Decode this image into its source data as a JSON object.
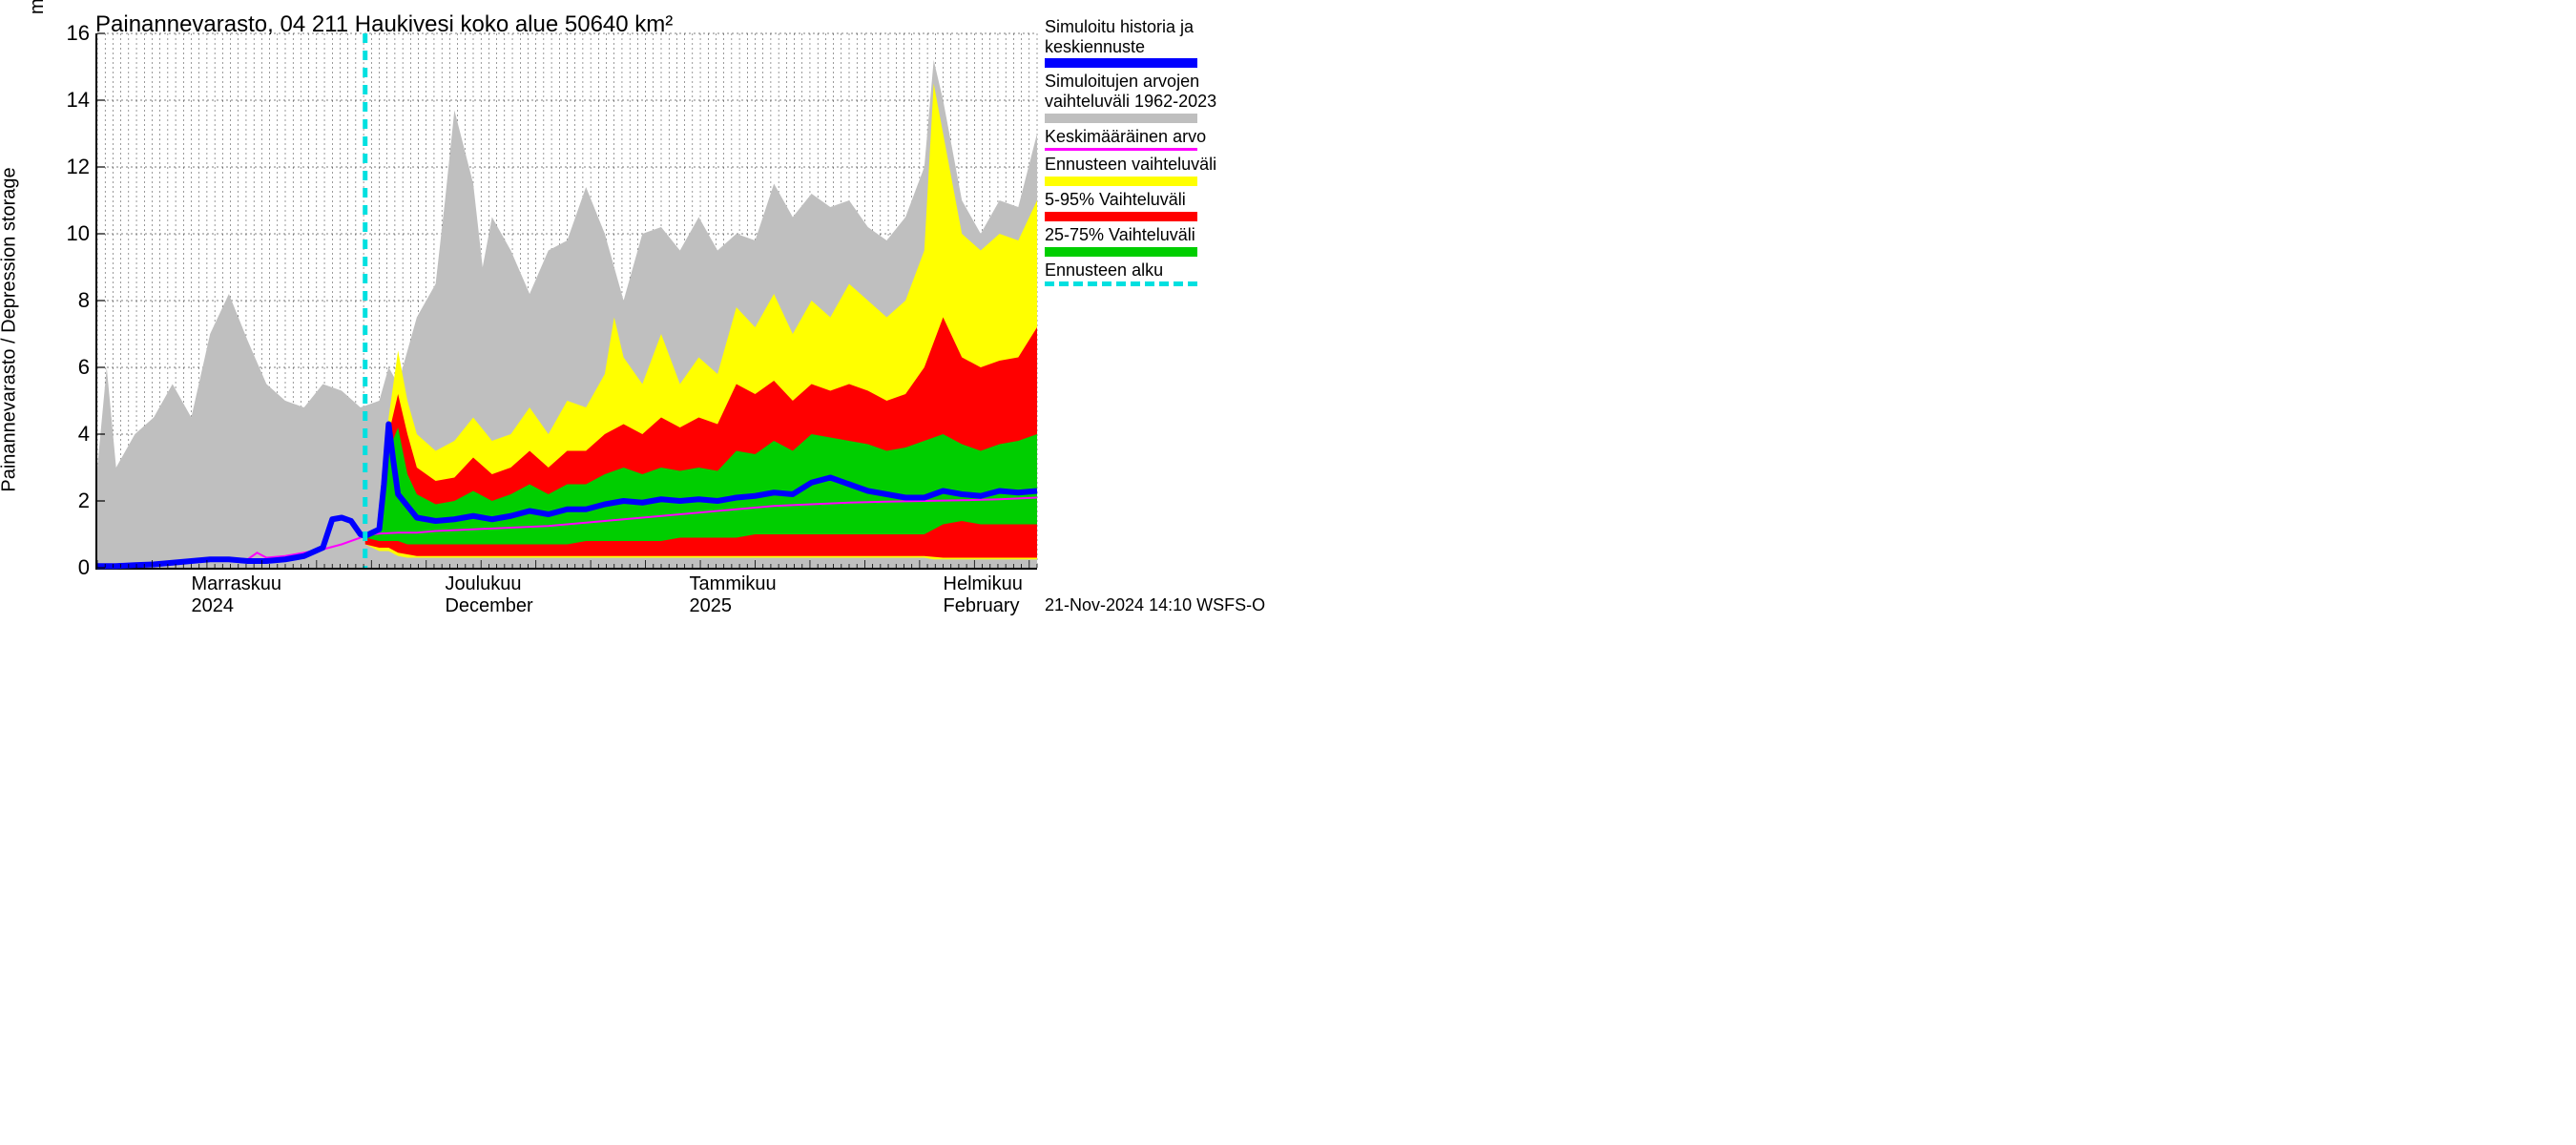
{
  "chart": {
    "title": "Painannevarasto, 04 211 Haukivesi koko alue 50640 km²",
    "y_axis_label": "Painannevarasto / Depression storage",
    "y_axis_unit": "mm",
    "ylim": [
      0,
      16
    ],
    "yticks": [
      0,
      2,
      4,
      6,
      8,
      10,
      12,
      14,
      16
    ],
    "x_ticks": [
      {
        "pos": 0.1,
        "line1": "Marraskuu",
        "line2": "2024"
      },
      {
        "pos": 0.37,
        "line1": "Joulukuu",
        "line2": "December"
      },
      {
        "pos": 0.63,
        "line1": "Tammikuu",
        "line2": "2025"
      },
      {
        "pos": 0.9,
        "line1": "Helmikuu",
        "line2": "February"
      }
    ],
    "forecast_start_x": 0.285,
    "colors": {
      "background": "#ffffff",
      "axis": "#000000",
      "grid": "#000000",
      "gray_band": "#bfbfbf",
      "yellow_band": "#ffff00",
      "red_band": "#ff0000",
      "green_band": "#00ce00",
      "blue_line": "#0000ff",
      "magenta_line": "#ff00ff",
      "cyan_dash": "#00e0e0"
    },
    "line_widths": {
      "blue_line": 6,
      "magenta_line": 2,
      "cyan_dash": 5,
      "grid": 0.5
    },
    "gray_band": {
      "x": [
        0.0,
        0.01,
        0.02,
        0.04,
        0.06,
        0.08,
        0.1,
        0.12,
        0.14,
        0.16,
        0.18,
        0.2,
        0.22,
        0.24,
        0.26,
        0.28,
        0.3,
        0.31,
        0.32,
        0.34,
        0.36,
        0.37,
        0.38,
        0.4,
        0.41,
        0.42,
        0.44,
        0.46,
        0.48,
        0.5,
        0.52,
        0.54,
        0.56,
        0.58,
        0.6,
        0.62,
        0.64,
        0.66,
        0.68,
        0.7,
        0.72,
        0.74,
        0.76,
        0.78,
        0.8,
        0.82,
        0.84,
        0.86,
        0.88,
        0.89,
        0.9,
        0.92,
        0.94,
        0.96,
        0.98,
        1.0
      ],
      "hi": [
        3.0,
        6.0,
        3.0,
        4.0,
        4.5,
        5.5,
        4.5,
        7.0,
        8.2,
        6.8,
        5.5,
        5.0,
        4.8,
        5.5,
        5.3,
        4.8,
        5.0,
        6.0,
        5.5,
        7.5,
        8.5,
        11.0,
        13.7,
        11.5,
        9.0,
        10.5,
        9.5,
        8.2,
        9.5,
        9.8,
        11.4,
        10.0,
        8.0,
        10.0,
        10.2,
        9.5,
        10.5,
        9.5,
        10.0,
        9.8,
        11.5,
        10.5,
        11.2,
        10.8,
        11.0,
        10.2,
        9.8,
        10.5,
        12.0,
        15.2,
        14.0,
        11.0,
        10.0,
        11.0,
        10.8,
        13.0
      ],
      "lo": [
        0.0,
        0.0,
        0.0,
        0.0,
        0.0,
        0.0,
        0.0,
        0.0,
        0.0,
        0.0,
        0.0,
        0.0,
        0.0,
        0.0,
        0.0,
        0.0,
        0.0,
        0.0,
        0.0,
        0.0,
        0.0,
        0.0,
        0.0,
        0.0,
        0.0,
        0.0,
        0.0,
        0.0,
        0.0,
        0.0,
        0.0,
        0.0,
        0.0,
        0.0,
        0.0,
        0.0,
        0.0,
        0.0,
        0.0,
        0.0,
        0.0,
        0.0,
        0.0,
        0.0,
        0.0,
        0.0,
        0.0,
        0.0,
        0.0,
        0.0,
        0.0,
        0.0,
        0.0,
        0.0,
        0.0,
        0.0
      ]
    },
    "yellow_band": {
      "x": [
        0.285,
        0.3,
        0.31,
        0.32,
        0.33,
        0.34,
        0.36,
        0.38,
        0.4,
        0.42,
        0.44,
        0.46,
        0.48,
        0.5,
        0.52,
        0.54,
        0.55,
        0.56,
        0.58,
        0.6,
        0.62,
        0.64,
        0.66,
        0.68,
        0.7,
        0.72,
        0.74,
        0.76,
        0.78,
        0.8,
        0.82,
        0.84,
        0.86,
        0.88,
        0.89,
        0.9,
        0.92,
        0.94,
        0.96,
        0.98,
        1.0
      ],
      "hi": [
        1.0,
        1.2,
        4.5,
        6.5,
        5.0,
        4.0,
        3.5,
        3.8,
        4.5,
        3.8,
        4.0,
        4.8,
        4.0,
        5.0,
        4.8,
        5.8,
        7.5,
        6.3,
        5.5,
        7.0,
        5.5,
        6.3,
        5.8,
        7.8,
        7.2,
        8.2,
        7.0,
        8.0,
        7.5,
        8.5,
        8.0,
        7.5,
        8.0,
        9.5,
        14.5,
        13.0,
        10.0,
        9.5,
        10.0,
        9.8,
        11.0
      ],
      "lo": [
        0.7,
        0.5,
        0.5,
        0.35,
        0.3,
        0.3,
        0.3,
        0.3,
        0.3,
        0.3,
        0.3,
        0.3,
        0.3,
        0.3,
        0.3,
        0.3,
        0.3,
        0.3,
        0.3,
        0.3,
        0.3,
        0.3,
        0.3,
        0.3,
        0.3,
        0.3,
        0.3,
        0.3,
        0.3,
        0.3,
        0.3,
        0.3,
        0.3,
        0.3,
        0.25,
        0.25,
        0.25,
        0.25,
        0.25,
        0.25,
        0.25
      ]
    },
    "red_band": {
      "x": [
        0.285,
        0.3,
        0.31,
        0.32,
        0.33,
        0.34,
        0.36,
        0.38,
        0.4,
        0.42,
        0.44,
        0.46,
        0.48,
        0.5,
        0.52,
        0.54,
        0.56,
        0.58,
        0.6,
        0.62,
        0.64,
        0.66,
        0.68,
        0.7,
        0.72,
        0.74,
        0.76,
        0.78,
        0.8,
        0.82,
        0.84,
        0.86,
        0.88,
        0.9,
        0.92,
        0.94,
        0.96,
        0.98,
        1.0
      ],
      "hi": [
        1.0,
        1.1,
        4.0,
        5.2,
        4.0,
        3.0,
        2.6,
        2.7,
        3.3,
        2.8,
        3.0,
        3.5,
        3.0,
        3.5,
        3.5,
        4.0,
        4.3,
        4.0,
        4.5,
        4.2,
        4.5,
        4.3,
        5.5,
        5.2,
        5.6,
        5.0,
        5.5,
        5.3,
        5.5,
        5.3,
        5.0,
        5.2,
        6.0,
        7.5,
        6.3,
        6.0,
        6.2,
        6.3,
        7.2
      ],
      "lo": [
        0.7,
        0.6,
        0.6,
        0.45,
        0.4,
        0.35,
        0.35,
        0.35,
        0.35,
        0.35,
        0.35,
        0.35,
        0.35,
        0.35,
        0.35,
        0.35,
        0.35,
        0.35,
        0.35,
        0.35,
        0.35,
        0.35,
        0.35,
        0.35,
        0.35,
        0.35,
        0.35,
        0.35,
        0.35,
        0.35,
        0.35,
        0.35,
        0.35,
        0.3,
        0.3,
        0.3,
        0.3,
        0.3,
        0.3
      ]
    },
    "green_band": {
      "x": [
        0.285,
        0.3,
        0.31,
        0.32,
        0.33,
        0.34,
        0.36,
        0.38,
        0.4,
        0.42,
        0.44,
        0.46,
        0.48,
        0.5,
        0.52,
        0.54,
        0.56,
        0.58,
        0.6,
        0.62,
        0.64,
        0.66,
        0.68,
        0.7,
        0.72,
        0.74,
        0.76,
        0.78,
        0.8,
        0.82,
        0.84,
        0.86,
        0.88,
        0.9,
        0.92,
        0.94,
        0.96,
        0.98,
        1.0
      ],
      "hi": [
        1.0,
        1.0,
        3.5,
        4.2,
        2.8,
        2.2,
        1.9,
        2.0,
        2.3,
        2.0,
        2.2,
        2.5,
        2.2,
        2.5,
        2.5,
        2.8,
        3.0,
        2.8,
        3.0,
        2.9,
        3.0,
        2.9,
        3.5,
        3.4,
        3.8,
        3.5,
        4.0,
        3.9,
        3.8,
        3.7,
        3.5,
        3.6,
        3.8,
        4.0,
        3.7,
        3.5,
        3.7,
        3.8,
        4.0
      ],
      "lo": [
        0.9,
        0.8,
        0.8,
        0.8,
        0.7,
        0.7,
        0.7,
        0.7,
        0.7,
        0.7,
        0.7,
        0.7,
        0.7,
        0.7,
        0.8,
        0.8,
        0.8,
        0.8,
        0.8,
        0.9,
        0.9,
        0.9,
        0.9,
        1.0,
        1.0,
        1.0,
        1.0,
        1.0,
        1.0,
        1.0,
        1.0,
        1.0,
        1.0,
        1.3,
        1.4,
        1.3,
        1.3,
        1.3,
        1.3
      ]
    },
    "blue_line": {
      "x": [
        0.0,
        0.02,
        0.04,
        0.06,
        0.08,
        0.1,
        0.12,
        0.14,
        0.16,
        0.18,
        0.2,
        0.22,
        0.24,
        0.25,
        0.26,
        0.27,
        0.28,
        0.285,
        0.3,
        0.305,
        0.31,
        0.315,
        0.32,
        0.34,
        0.36,
        0.38,
        0.4,
        0.42,
        0.44,
        0.46,
        0.48,
        0.5,
        0.52,
        0.54,
        0.56,
        0.58,
        0.6,
        0.62,
        0.64,
        0.66,
        0.68,
        0.7,
        0.72,
        0.74,
        0.76,
        0.78,
        0.8,
        0.82,
        0.84,
        0.86,
        0.88,
        0.9,
        0.92,
        0.94,
        0.96,
        0.98,
        1.0
      ],
      "y": [
        0.05,
        0.05,
        0.08,
        0.1,
        0.15,
        0.2,
        0.25,
        0.25,
        0.2,
        0.2,
        0.25,
        0.35,
        0.6,
        1.45,
        1.5,
        1.4,
        1.0,
        0.95,
        1.15,
        2.5,
        4.3,
        3.2,
        2.2,
        1.5,
        1.4,
        1.45,
        1.55,
        1.45,
        1.55,
        1.7,
        1.6,
        1.75,
        1.75,
        1.9,
        2.0,
        1.95,
        2.05,
        2.0,
        2.05,
        2.0,
        2.1,
        2.15,
        2.25,
        2.2,
        2.55,
        2.7,
        2.5,
        2.3,
        2.2,
        2.1,
        2.1,
        2.3,
        2.2,
        2.15,
        2.3,
        2.25,
        2.3
      ]
    },
    "magenta_line": {
      "x": [
        0.0,
        0.04,
        0.08,
        0.1,
        0.12,
        0.14,
        0.16,
        0.17,
        0.18,
        0.2,
        0.22,
        0.24,
        0.26,
        0.28,
        0.285,
        0.3,
        0.32,
        0.34,
        0.36,
        0.4,
        0.44,
        0.48,
        0.52,
        0.56,
        0.6,
        0.64,
        0.68,
        0.72,
        0.76,
        0.8,
        0.84,
        0.88,
        0.92,
        0.96,
        1.0
      ],
      "y": [
        0.05,
        0.05,
        0.1,
        0.15,
        0.25,
        0.3,
        0.25,
        0.45,
        0.3,
        0.35,
        0.45,
        0.55,
        0.7,
        0.9,
        0.98,
        1.02,
        1.05,
        1.05,
        1.1,
        1.15,
        1.2,
        1.25,
        1.35,
        1.45,
        1.55,
        1.65,
        1.75,
        1.85,
        1.9,
        1.95,
        1.98,
        2.0,
        2.02,
        2.05,
        2.1
      ]
    }
  },
  "legend": {
    "items": [
      {
        "text1": "Simuloitu historia ja",
        "text2": "keskiennuste",
        "swatch_color": "#0000ff",
        "swatch_type": "solid"
      },
      {
        "text1": "Simuloitujen arvojen",
        "text2": "vaihteluväli 1962-2023",
        "swatch_color": "#bfbfbf",
        "swatch_type": "solid"
      },
      {
        "text1": "Keskimääräinen arvo",
        "text2": "",
        "swatch_color": "#ff00ff",
        "swatch_type": "thin"
      },
      {
        "text1": "Ennusteen vaihteluväli",
        "text2": "",
        "swatch_color": "#ffff00",
        "swatch_type": "solid"
      },
      {
        "text1": "5-95% Vaihteluväli",
        "text2": "",
        "swatch_color": "#ff0000",
        "swatch_type": "solid"
      },
      {
        "text1": "25-75% Vaihteluväli",
        "text2": "",
        "swatch_color": "#00ce00",
        "swatch_type": "solid"
      },
      {
        "text1": "Ennusteen alku",
        "text2": "",
        "swatch_color": "#00e0e0",
        "swatch_type": "dashed"
      }
    ]
  },
  "footer": "21-Nov-2024 14:10 WSFS-O"
}
